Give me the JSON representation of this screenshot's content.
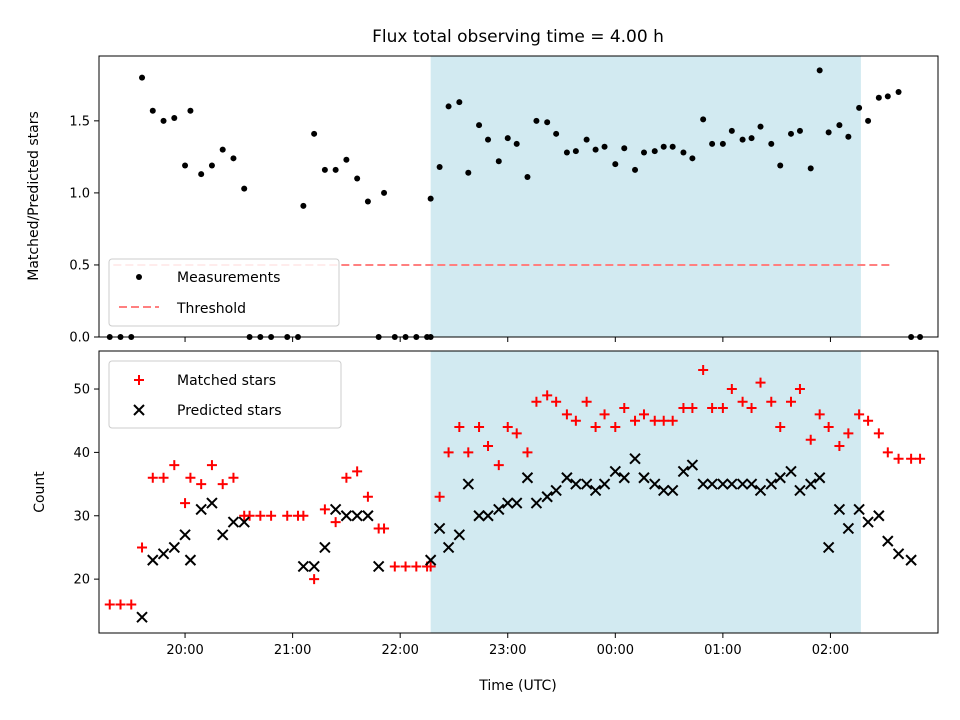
{
  "chart_data": {
    "type": "scatter",
    "title": "Flux total observing time = 4.00 h",
    "xlabel": "Time (UTC)",
    "x_unit": "UTC time of day (HH:MM), 19:00 to 02:45 spanning midnight",
    "x_ticks": [
      "20:00",
      "21:00",
      "22:00",
      "23:00",
      "00:00",
      "01:00",
      "02:00"
    ],
    "shaded_interval": [
      "22:17",
      "02:17"
    ],
    "shaded_color": "#add8e6",
    "top": {
      "ylabel": "Matched/Predicted stars",
      "ylim": [
        0,
        1.95
      ],
      "yticks": [
        "0.0",
        "0.5",
        "1.0",
        "1.5"
      ],
      "threshold": 0.5,
      "threshold_range": [
        "19:20",
        "02:35"
      ],
      "legend": [
        "Measurements",
        "Threshold"
      ],
      "series": [
        {
          "name": "Measurements",
          "color": "#000000",
          "marker": "dot",
          "points": [
            [
              "19:18",
              0
            ],
            [
              "19:24",
              0
            ],
            [
              "19:30",
              0
            ],
            [
              "19:36",
              1.8
            ],
            [
              "19:42",
              1.57
            ],
            [
              "19:48",
              1.5
            ],
            [
              "19:54",
              1.52
            ],
            [
              "20:00",
              1.19
            ],
            [
              "20:03",
              1.57
            ],
            [
              "20:09",
              1.13
            ],
            [
              "20:15",
              1.19
            ],
            [
              "20:21",
              1.3
            ],
            [
              "20:27",
              1.24
            ],
            [
              "20:33",
              1.03
            ],
            [
              "20:36",
              0
            ],
            [
              "20:42",
              0
            ],
            [
              "20:48",
              0
            ],
            [
              "20:57",
              0
            ],
            [
              "21:03",
              0
            ],
            [
              "21:06",
              0.91
            ],
            [
              "21:12",
              1.41
            ],
            [
              "21:18",
              1.16
            ],
            [
              "21:24",
              1.16
            ],
            [
              "21:30",
              1.23
            ],
            [
              "21:36",
              1.1
            ],
            [
              "21:42",
              0.94
            ],
            [
              "21:48",
              0
            ],
            [
              "21:51",
              1.0
            ],
            [
              "21:57",
              0
            ],
            [
              "22:03",
              0
            ],
            [
              "22:09",
              0
            ],
            [
              "22:15",
              0
            ],
            [
              "22:17",
              0
            ],
            [
              "22:17",
              0.96
            ],
            [
              "22:22",
              1.18
            ],
            [
              "22:27",
              1.6
            ],
            [
              "22:33",
              1.63
            ],
            [
              "22:38",
              1.14
            ],
            [
              "22:44",
              1.47
            ],
            [
              "22:49",
              1.37
            ],
            [
              "22:55",
              1.22
            ],
            [
              "23:00",
              1.38
            ],
            [
              "23:05",
              1.34
            ],
            [
              "23:11",
              1.11
            ],
            [
              "23:16",
              1.5
            ],
            [
              "23:22",
              1.49
            ],
            [
              "23:27",
              1.41
            ],
            [
              "23:33",
              1.28
            ],
            [
              "23:38",
              1.29
            ],
            [
              "23:44",
              1.37
            ],
            [
              "23:49",
              1.3
            ],
            [
              "23:54",
              1.32
            ],
            [
              "00:00",
              1.2
            ],
            [
              "00:05",
              1.31
            ],
            [
              "00:11",
              1.16
            ],
            [
              "00:16",
              1.28
            ],
            [
              "00:22",
              1.29
            ],
            [
              "00:27",
              1.32
            ],
            [
              "00:32",
              1.32
            ],
            [
              "00:38",
              1.28
            ],
            [
              "00:43",
              1.24
            ],
            [
              "00:49",
              1.51
            ],
            [
              "00:54",
              1.34
            ],
            [
              "01:00",
              1.34
            ],
            [
              "01:05",
              1.43
            ],
            [
              "01:11",
              1.37
            ],
            [
              "01:16",
              1.38
            ],
            [
              "01:21",
              1.46
            ],
            [
              "01:27",
              1.34
            ],
            [
              "01:32",
              1.19
            ],
            [
              "01:38",
              1.41
            ],
            [
              "01:43",
              1.43
            ],
            [
              "01:49",
              1.17
            ],
            [
              "01:54",
              1.85
            ],
            [
              "01:59",
              1.42
            ],
            [
              "02:05",
              1.47
            ],
            [
              "02:10",
              1.39
            ],
            [
              "02:16",
              1.59
            ],
            [
              "02:21",
              1.5
            ],
            [
              "02:27",
              1.66
            ],
            [
              "02:32",
              1.67
            ],
            [
              "02:38",
              1.7
            ],
            [
              "02:45",
              0
            ],
            [
              "02:50",
              0
            ]
          ]
        },
        {
          "name": "Threshold",
          "color": "#ff8080",
          "style": "dashed"
        }
      ]
    },
    "bottom": {
      "ylabel": "Count",
      "ylim": [
        11.5,
        56
      ],
      "yticks": [
        "20",
        "30",
        "40",
        "50"
      ],
      "legend": [
        "Matched stars",
        "Predicted stars"
      ],
      "series": [
        {
          "name": "Matched stars",
          "color": "#ff0000",
          "marker": "plus",
          "points": [
            [
              "19:18",
              16
            ],
            [
              "19:24",
              16
            ],
            [
              "19:30",
              16
            ],
            [
              "19:36",
              25
            ],
            [
              "19:42",
              36
            ],
            [
              "19:48",
              36
            ],
            [
              "19:54",
              38
            ],
            [
              "20:00",
              32
            ],
            [
              "20:03",
              36
            ],
            [
              "20:09",
              35
            ],
            [
              "20:15",
              38
            ],
            [
              "20:21",
              35
            ],
            [
              "20:27",
              36
            ],
            [
              "20:33",
              30
            ],
            [
              "20:36",
              30
            ],
            [
              "20:42",
              30
            ],
            [
              "20:48",
              30
            ],
            [
              "20:57",
              30
            ],
            [
              "21:03",
              30
            ],
            [
              "21:06",
              30
            ],
            [
              "21:12",
              20
            ],
            [
              "21:18",
              31
            ],
            [
              "21:24",
              29
            ],
            [
              "21:30",
              36
            ],
            [
              "21:36",
              37
            ],
            [
              "21:42",
              33
            ],
            [
              "21:48",
              28
            ],
            [
              "21:51",
              28
            ],
            [
              "21:57",
              22
            ],
            [
              "22:03",
              22
            ],
            [
              "22:09",
              22
            ],
            [
              "22:15",
              22
            ],
            [
              "22:17",
              22
            ],
            [
              "22:22",
              33
            ],
            [
              "22:27",
              40
            ],
            [
              "22:33",
              44
            ],
            [
              "22:38",
              40
            ],
            [
              "22:44",
              44
            ],
            [
              "22:49",
              41
            ],
            [
              "22:55",
              38
            ],
            [
              "23:00",
              44
            ],
            [
              "23:05",
              43
            ],
            [
              "23:11",
              40
            ],
            [
              "23:16",
              48
            ],
            [
              "23:22",
              49
            ],
            [
              "23:27",
              48
            ],
            [
              "23:33",
              46
            ],
            [
              "23:38",
              45
            ],
            [
              "23:44",
              48
            ],
            [
              "23:49",
              44
            ],
            [
              "23:54",
              46
            ],
            [
              "00:00",
              44
            ],
            [
              "00:05",
              47
            ],
            [
              "00:11",
              45
            ],
            [
              "00:16",
              46
            ],
            [
              "00:22",
              45
            ],
            [
              "00:27",
              45
            ],
            [
              "00:32",
              45
            ],
            [
              "00:38",
              47
            ],
            [
              "00:43",
              47
            ],
            [
              "00:49",
              53
            ],
            [
              "00:54",
              47
            ],
            [
              "01:00",
              47
            ],
            [
              "01:05",
              50
            ],
            [
              "01:11",
              48
            ],
            [
              "01:16",
              47
            ],
            [
              "01:21",
              51
            ],
            [
              "01:27",
              48
            ],
            [
              "01:32",
              44
            ],
            [
              "01:38",
              48
            ],
            [
              "01:43",
              50
            ],
            [
              "01:49",
              42
            ],
            [
              "01:54",
              46
            ],
            [
              "01:59",
              44
            ],
            [
              "02:05",
              41
            ],
            [
              "02:10",
              43
            ],
            [
              "02:16",
              46
            ],
            [
              "02:21",
              45
            ],
            [
              "02:27",
              43
            ],
            [
              "02:32",
              40
            ],
            [
              "02:38",
              39
            ],
            [
              "02:45",
              39
            ],
            [
              "02:50",
              39
            ]
          ]
        },
        {
          "name": "Predicted stars",
          "color": "#000000",
          "marker": "x",
          "points": [
            [
              "19:36",
              14
            ],
            [
              "19:42",
              23
            ],
            [
              "19:48",
              24
            ],
            [
              "19:54",
              25
            ],
            [
              "20:00",
              27
            ],
            [
              "20:03",
              23
            ],
            [
              "20:09",
              31
            ],
            [
              "20:15",
              32
            ],
            [
              "20:21",
              27
            ],
            [
              "20:27",
              29
            ],
            [
              "20:33",
              29
            ],
            [
              "21:06",
              22
            ],
            [
              "21:12",
              22
            ],
            [
              "21:18",
              25
            ],
            [
              "21:24",
              31
            ],
            [
              "21:30",
              30
            ],
            [
              "21:36",
              30
            ],
            [
              "21:42",
              30
            ],
            [
              "21:48",
              22
            ],
            [
              "22:17",
              23
            ],
            [
              "22:22",
              28
            ],
            [
              "22:27",
              25
            ],
            [
              "22:33",
              27
            ],
            [
              "22:38",
              35
            ],
            [
              "22:44",
              30
            ],
            [
              "22:49",
              30
            ],
            [
              "22:55",
              31
            ],
            [
              "23:00",
              32
            ],
            [
              "23:05",
              32
            ],
            [
              "23:11",
              36
            ],
            [
              "23:16",
              32
            ],
            [
              "23:22",
              33
            ],
            [
              "23:27",
              34
            ],
            [
              "23:33",
              36
            ],
            [
              "23:38",
              35
            ],
            [
              "23:44",
              35
            ],
            [
              "23:49",
              34
            ],
            [
              "23:54",
              35
            ],
            [
              "00:00",
              37
            ],
            [
              "00:05",
              36
            ],
            [
              "00:11",
              39
            ],
            [
              "00:16",
              36
            ],
            [
              "00:22",
              35
            ],
            [
              "00:27",
              34
            ],
            [
              "00:32",
              34
            ],
            [
              "00:38",
              37
            ],
            [
              "00:43",
              38
            ],
            [
              "00:49",
              35
            ],
            [
              "00:54",
              35
            ],
            [
              "01:00",
              35
            ],
            [
              "01:05",
              35
            ],
            [
              "01:11",
              35
            ],
            [
              "01:16",
              35
            ],
            [
              "01:21",
              34
            ],
            [
              "01:27",
              35
            ],
            [
              "01:32",
              36
            ],
            [
              "01:38",
              37
            ],
            [
              "01:43",
              34
            ],
            [
              "01:49",
              35
            ],
            [
              "01:54",
              36
            ],
            [
              "01:59",
              25
            ],
            [
              "02:05",
              31
            ],
            [
              "02:10",
              28
            ],
            [
              "02:16",
              31
            ],
            [
              "02:21",
              29
            ],
            [
              "02:27",
              30
            ],
            [
              "02:32",
              26
            ],
            [
              "02:38",
              24
            ],
            [
              "02:45",
              23
            ]
          ]
        }
      ]
    }
  }
}
